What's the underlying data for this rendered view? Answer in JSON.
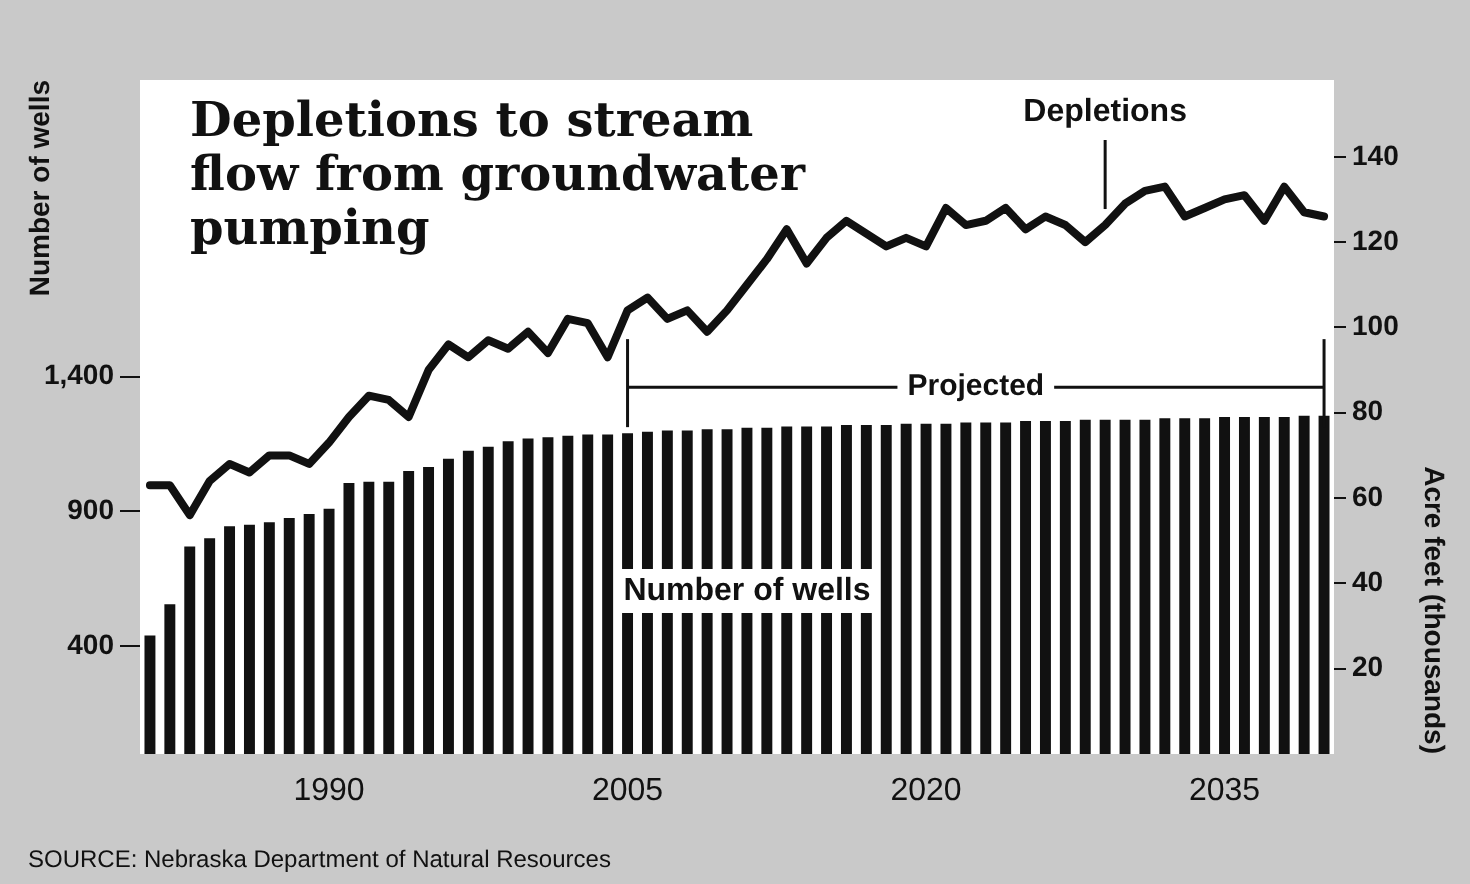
{
  "chart_data": {
    "type": "bar",
    "title": "Depletions to stream flow from groundwater pumping",
    "ylabel": "Number of wells",
    "y2label": "Acre feet (thousands)",
    "x": [
      1981,
      1982,
      1983,
      1984,
      1985,
      1986,
      1987,
      1988,
      1989,
      1990,
      1991,
      1992,
      1993,
      1994,
      1995,
      1996,
      1997,
      1998,
      1999,
      2000,
      2001,
      2002,
      2003,
      2004,
      2005,
      2006,
      2007,
      2008,
      2009,
      2010,
      2011,
      2012,
      2013,
      2014,
      2015,
      2016,
      2017,
      2018,
      2019,
      2020,
      2021,
      2022,
      2023,
      2024,
      2025,
      2026,
      2027,
      2028,
      2029,
      2030,
      2031,
      2032,
      2033,
      2034,
      2035,
      2036,
      2037,
      2038,
      2039,
      2040
    ],
    "xlim": [
      1980.5,
      2040.5
    ],
    "xticks": [
      1990,
      2005,
      2020,
      2035
    ],
    "ylim": [
      0,
      2500
    ],
    "yticks": [
      400,
      900,
      {
        "value": 1400,
        "label": "1,400"
      }
    ],
    "y2lim": [
      0,
      158
    ],
    "y2ticks": [
      20,
      40,
      60,
      80,
      100,
      120,
      140
    ],
    "series": [
      {
        "name": "Number of wells",
        "color": "#111111",
        "values": [
          440,
          555,
          770,
          800,
          845,
          850,
          860,
          875,
          890,
          910,
          1005,
          1010,
          1010,
          1050,
          1065,
          1095,
          1125,
          1140,
          1160,
          1170,
          1175,
          1180,
          1185,
          1185,
          1190,
          1195,
          1200,
          1200,
          1205,
          1205,
          1210,
          1210,
          1215,
          1215,
          1215,
          1220,
          1220,
          1220,
          1225,
          1225,
          1225,
          1230,
          1230,
          1230,
          1235,
          1235,
          1235,
          1240,
          1240,
          1240,
          1240,
          1245,
          1245,
          1245,
          1250,
          1250,
          1250,
          1250,
          1255,
          1255
        ]
      },
      {
        "name": "Depletions",
        "type": "line",
        "axis": "y2",
        "color": "#111111",
        "values": [
          63,
          63,
          56,
          64,
          68,
          66,
          70,
          70,
          68,
          73,
          79,
          84,
          83,
          79,
          90,
          96,
          93,
          97,
          95,
          99,
          94,
          102,
          101,
          93,
          104,
          107,
          102,
          104,
          99,
          104,
          110,
          116,
          123,
          115,
          121,
          125,
          122,
          119,
          121,
          119,
          128,
          124,
          125,
          128,
          123,
          126,
          124,
          120,
          124,
          129,
          132,
          133,
          126,
          128,
          130,
          131,
          125,
          133,
          127,
          126
        ]
      }
    ],
    "ref_lines": [
      {
        "axis": "x",
        "value": 2005,
        "label": "Projected"
      },
      {
        "axis": "x",
        "value": 2040,
        "label": null
      }
    ],
    "annotations": [
      "SOURCE: Nebraska Department of Natural Resources"
    ],
    "grid": false,
    "legend": false,
    "marker": "none",
    "line_style": "solid"
  }
}
